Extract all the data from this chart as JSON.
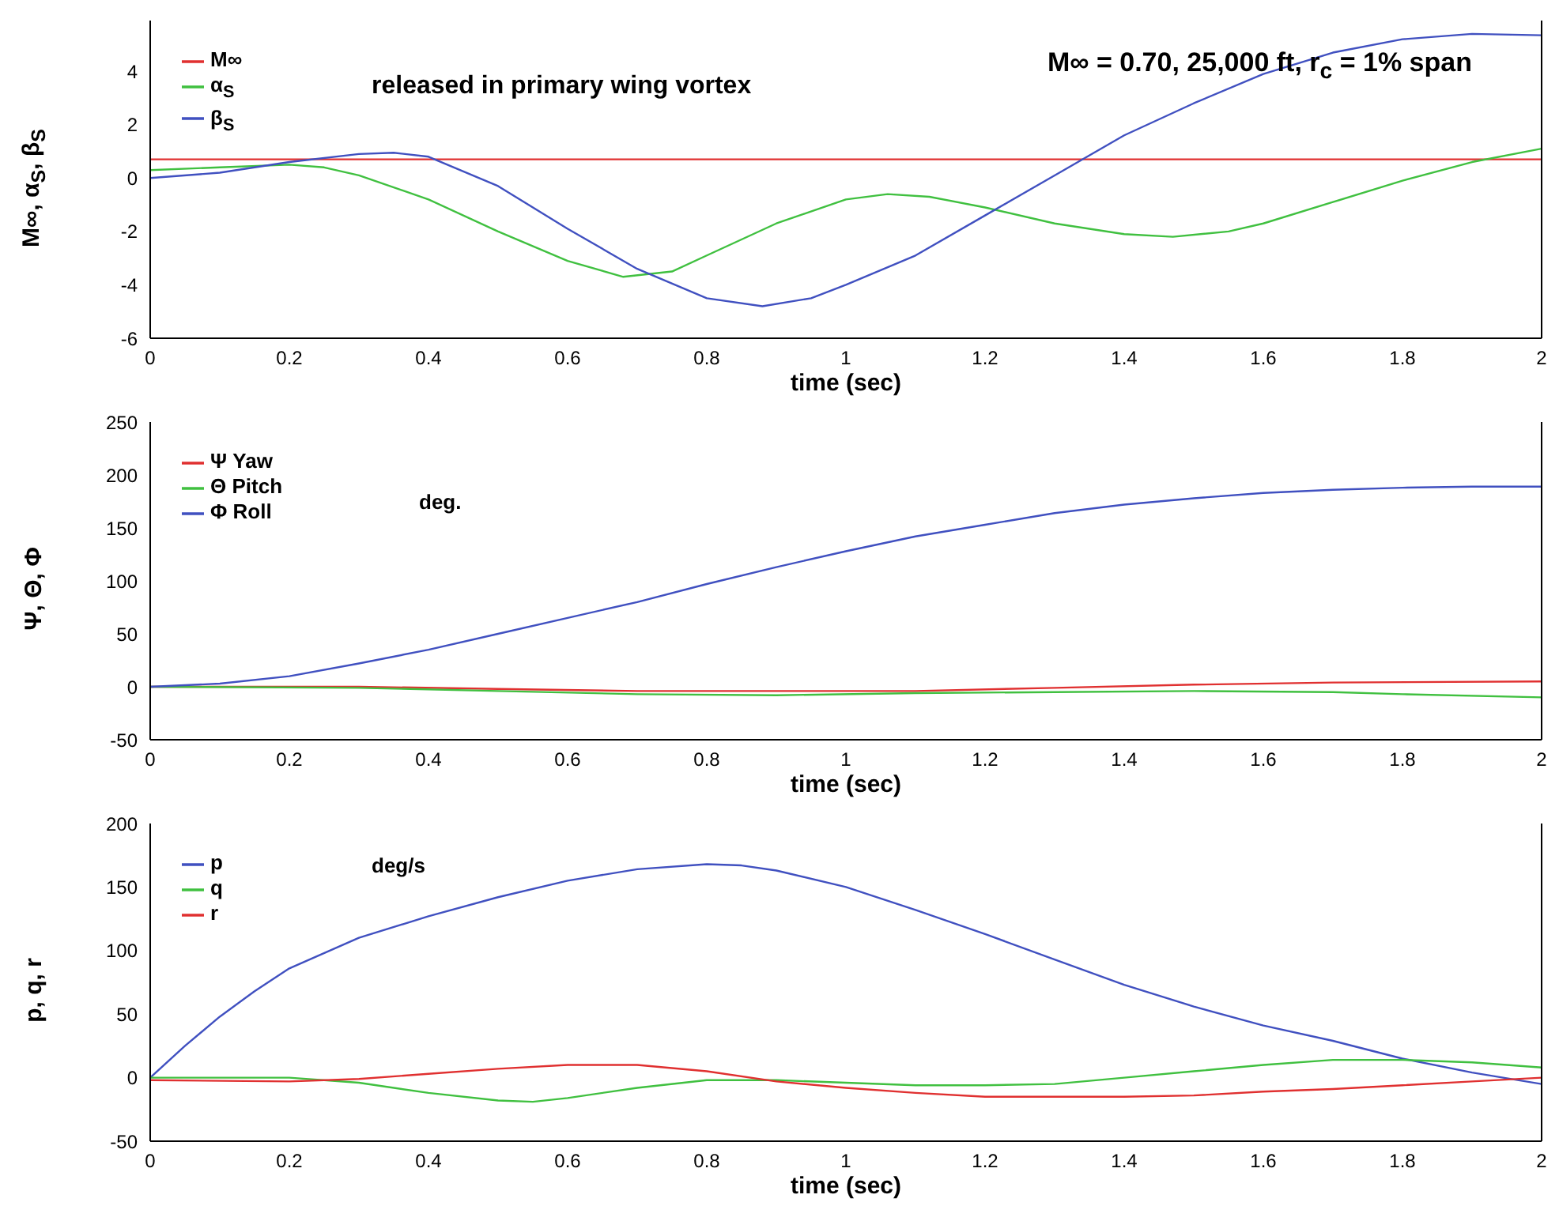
{
  "chart_data": [
    {
      "type": "line",
      "xlabel": "time (sec)",
      "ylabel": "M∞, α$_{S}$, β$_{S}$",
      "xlim": [
        0,
        2
      ],
      "xticks": [
        0,
        0.2,
        0.4,
        0.6,
        0.8,
        1,
        1.2,
        1.4,
        1.6,
        1.8,
        2
      ],
      "ylim": [
        -6,
        5.9
      ],
      "yticks": [
        -6,
        -4,
        -2,
        0,
        2,
        4
      ],
      "legend": "top left",
      "annotations": [
        "M∞ = 0.70, 25,000 ft, r$_{c}$ = 1% span",
        "released in primary wing vortex"
      ],
      "series": [
        {
          "name": "M∞",
          "color": "#e03030",
          "x": [
            0,
            2
          ],
          "values": [
            0.7,
            0.7
          ]
        },
        {
          "name": "α$_{S}$",
          "color": "#40c040",
          "x": [
            0,
            0.1,
            0.2,
            0.25,
            0.3,
            0.4,
            0.5,
            0.6,
            0.68,
            0.75,
            0.8,
            0.9,
            1.0,
            1.06,
            1.12,
            1.2,
            1.3,
            1.4,
            1.47,
            1.55,
            1.6,
            1.7,
            1.8,
            1.9,
            2.0
          ],
          "values": [
            0.3,
            0.4,
            0.5,
            0.4,
            0.1,
            -0.8,
            -2.0,
            -3.1,
            -3.7,
            -3.5,
            -2.9,
            -1.7,
            -0.8,
            -0.6,
            -0.7,
            -1.1,
            -1.7,
            -2.1,
            -2.2,
            -2.0,
            -1.7,
            -0.9,
            -0.1,
            0.6,
            1.1
          ]
        },
        {
          "name": "β$_{S}$",
          "color": "#4050c0",
          "x": [
            0,
            0.1,
            0.2,
            0.3,
            0.35,
            0.4,
            0.5,
            0.6,
            0.7,
            0.8,
            0.88,
            0.95,
            1.0,
            1.1,
            1.2,
            1.3,
            1.4,
            1.5,
            1.6,
            1.7,
            1.8,
            1.9,
            2.0
          ],
          "values": [
            0.0,
            0.2,
            0.6,
            0.9,
            0.95,
            0.8,
            -0.3,
            -1.9,
            -3.4,
            -4.5,
            -4.8,
            -4.5,
            -4.0,
            -2.9,
            -1.4,
            0.1,
            1.6,
            2.8,
            3.9,
            4.7,
            5.2,
            5.4,
            5.35
          ]
        }
      ]
    },
    {
      "type": "line",
      "xlabel": "time (sec)",
      "ylabel": "Ψ, Θ, Φ",
      "xlim": [
        0,
        2
      ],
      "xticks": [
        0,
        0.2,
        0.4,
        0.6,
        0.8,
        1,
        1.2,
        1.4,
        1.6,
        1.8,
        2
      ],
      "ylim": [
        -50,
        250
      ],
      "yticks": [
        -50,
        0,
        50,
        100,
        150,
        200,
        250
      ],
      "legend": "top left",
      "annotations": [
        "deg."
      ],
      "series": [
        {
          "name": "Ψ Yaw",
          "color": "#e03030",
          "x": [
            0,
            0.3,
            0.5,
            0.7,
            0.9,
            1.1,
            1.3,
            1.5,
            1.7,
            2.0
          ],
          "values": [
            0,
            0,
            -2,
            -4,
            -4,
            -4,
            -1,
            2,
            4,
            5
          ]
        },
        {
          "name": "Θ Pitch",
          "color": "#40c040",
          "x": [
            0,
            0.3,
            0.5,
            0.7,
            0.9,
            1.1,
            1.3,
            1.5,
            1.7,
            1.8,
            2.0
          ],
          "values": [
            0,
            -1,
            -4,
            -7,
            -8,
            -6,
            -5,
            -4,
            -5,
            -7,
            -10
          ]
        },
        {
          "name": "Φ Roll",
          "color": "#4050c0",
          "x": [
            0,
            0.1,
            0.2,
            0.3,
            0.4,
            0.5,
            0.6,
            0.7,
            0.8,
            0.9,
            1.0,
            1.1,
            1.2,
            1.3,
            1.4,
            1.5,
            1.6,
            1.7,
            1.8,
            1.9,
            2.0
          ],
          "values": [
            0,
            3,
            10,
            22,
            35,
            50,
            65,
            80,
            97,
            113,
            128,
            142,
            153,
            164,
            172,
            178,
            183,
            186,
            188,
            189,
            189
          ]
        }
      ]
    },
    {
      "type": "line",
      "xlabel": "time (sec)",
      "ylabel": "p, q, r",
      "xlim": [
        0,
        2
      ],
      "xticks": [
        0,
        0.2,
        0.4,
        0.6,
        0.8,
        1,
        1.2,
        1.4,
        1.6,
        1.8,
        2
      ],
      "ylim": [
        -50,
        200
      ],
      "yticks": [
        -50,
        0,
        50,
        100,
        150,
        200
      ],
      "legend": "top left",
      "annotations": [
        "deg/s"
      ],
      "series": [
        {
          "name": "p",
          "color": "#4050c0",
          "x": [
            0,
            0.05,
            0.1,
            0.15,
            0.2,
            0.3,
            0.4,
            0.5,
            0.6,
            0.7,
            0.8,
            0.85,
            0.9,
            1.0,
            1.1,
            1.2,
            1.3,
            1.4,
            1.5,
            1.6,
            1.7,
            1.8,
            1.9,
            2.0
          ],
          "values": [
            0,
            25,
            48,
            68,
            86,
            110,
            127,
            142,
            155,
            164,
            168,
            167,
            163,
            150,
            132,
            113,
            93,
            73,
            56,
            41,
            29,
            15,
            4,
            -5
          ]
        },
        {
          "name": "q",
          "color": "#40c040",
          "x": [
            0,
            0.2,
            0.3,
            0.4,
            0.5,
            0.55,
            0.6,
            0.7,
            0.8,
            0.9,
            1.0,
            1.1,
            1.2,
            1.3,
            1.4,
            1.5,
            1.6,
            1.7,
            1.8,
            1.9,
            2.0
          ],
          "values": [
            0,
            0,
            -4,
            -12,
            -18,
            -19,
            -16,
            -8,
            -2,
            -2,
            -4,
            -6,
            -6,
            -5,
            0,
            5,
            10,
            14,
            14,
            12,
            8
          ]
        },
        {
          "name": "r",
          "color": "#e03030",
          "x": [
            0,
            0.2,
            0.3,
            0.4,
            0.5,
            0.6,
            0.7,
            0.8,
            0.9,
            1.0,
            1.1,
            1.2,
            1.4,
            1.5,
            1.6,
            1.7,
            1.8,
            1.9,
            2.0
          ],
          "values": [
            -2,
            -3,
            -1,
            3,
            7,
            10,
            10,
            5,
            -3,
            -8,
            -12,
            -15,
            -15,
            -14,
            -11,
            -9,
            -6,
            -3,
            0
          ]
        }
      ]
    }
  ]
}
